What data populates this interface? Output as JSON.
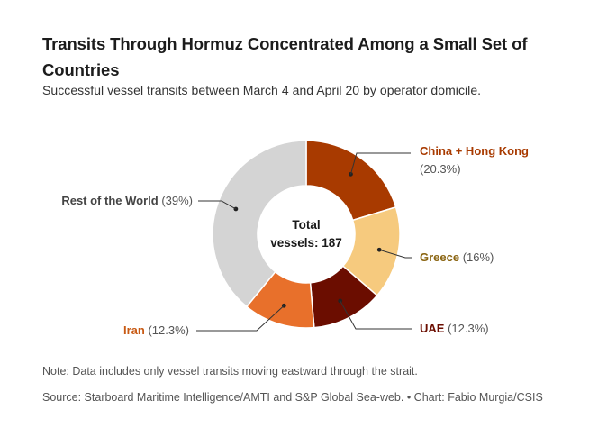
{
  "header": {
    "title": "Transits Through Hormuz Concentrated Among a Small Set of Countries",
    "subtitle": "Successful vessel transits between March 4 and April 20 by operator domicile."
  },
  "chart_data": {
    "type": "pie",
    "variant": "donut",
    "center_label": [
      "Total",
      "vessels: 187"
    ],
    "slices": [
      {
        "name": "China + Hong Kong",
        "pct_label": "(20.3%)",
        "value": 20.3,
        "color": "#a83a00",
        "label_color": "#a83a00"
      },
      {
        "name": "Greece",
        "pct_label": "(16%)",
        "value": 16.0,
        "color": "#f6ca7e",
        "label_color": "#8a6410"
      },
      {
        "name": "UAE",
        "pct_label": "(12.3%)",
        "value": 12.3,
        "color": "#6b0d00",
        "label_color": "#6b0d00"
      },
      {
        "name": "Iran",
        "pct_label": "(12.3%)",
        "value": 12.3,
        "color": "#e8702b",
        "label_color": "#c85a14"
      },
      {
        "name": "Rest of the World",
        "pct_label": "(39%)",
        "value": 39.0,
        "color": "#d4d4d4",
        "label_color": "#444444"
      }
    ]
  },
  "footer": {
    "note": "Note: Data includes only vessel transits moving eastward through the strait.",
    "source": "Source: Starboard Maritime Intelligence/AMTI and S&P Global Sea-web. • Chart: Fabio Murgia/CSIS"
  }
}
